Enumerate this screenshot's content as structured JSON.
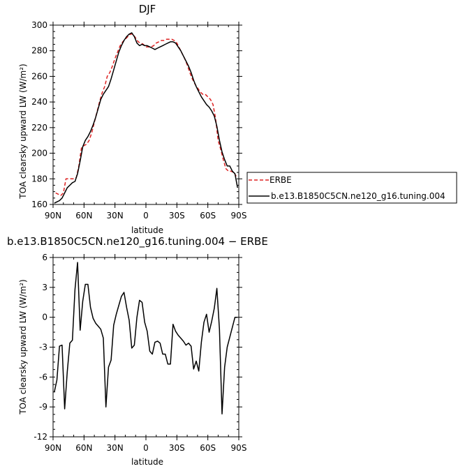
{
  "chart_data": [
    {
      "type": "line",
      "title": "DJF",
      "xlabel": "latitude",
      "ylabel": "TOA clearsky upward LW (W/m²)",
      "xlim": [
        -90,
        90
      ],
      "ylim": [
        160,
        300
      ],
      "x_ticks": [
        {
          "value": -90,
          "label": "90N"
        },
        {
          "value": -60,
          "label": "60N"
        },
        {
          "value": -30,
          "label": "30N"
        },
        {
          "value": 0,
          "label": "0"
        },
        {
          "value": 30,
          "label": "30S"
        },
        {
          "value": 60,
          "label": "60S"
        },
        {
          "value": 90,
          "label": "90S"
        }
      ],
      "y_ticks": [
        160,
        180,
        200,
        220,
        240,
        260,
        280,
        300
      ],
      "legend": "right",
      "series": [
        {
          "name": "ERBE",
          "color": "#dd2222",
          "dash": "dashed",
          "x": [
            -87.5,
            -85,
            -82.5,
            -80,
            -77.5,
            -75,
            -72.5,
            -70,
            -67.5,
            -65,
            -62.5,
            -60,
            -57.5,
            -55,
            -52.5,
            -50,
            -47.5,
            -45,
            -42.5,
            -40,
            -37.5,
            -35,
            -32.5,
            -30,
            -27.5,
            -25,
            -22.5,
            -20,
            -17.5,
            -15,
            -12.5,
            -10,
            -7.5,
            -5,
            -2.5,
            0,
            2.5,
            5,
            7.5,
            10,
            12.5,
            15,
            17.5,
            20,
            22.5,
            25,
            27.5,
            30,
            32.5,
            35,
            37.5,
            40,
            42.5,
            45,
            47.5,
            50,
            52.5,
            55,
            57.5,
            60,
            62.5,
            65,
            67.5,
            70,
            72.5,
            75,
            77.5,
            80,
            82.5,
            85,
            87.5
          ],
          "values": [
            169,
            168,
            167,
            169,
            180,
            180,
            180,
            180,
            181,
            190,
            204,
            206,
            207,
            210,
            216,
            224,
            232,
            240,
            247,
            252,
            260,
            263,
            268,
            274,
            279,
            284,
            287,
            289,
            291,
            293,
            293,
            290,
            287,
            286,
            285,
            283,
            283,
            283,
            284,
            286,
            287,
            288,
            288,
            289,
            289,
            289,
            288,
            286,
            282,
            278,
            274,
            269,
            263,
            258,
            254,
            251,
            248,
            246,
            246,
            244,
            242,
            238,
            227,
            210,
            203,
            195,
            188,
            186,
            186,
            185,
            182
          ]
        },
        {
          "name": "b.e13.B1850C5CN.ne120_g16.tuning.004",
          "color": "#000000",
          "dash": "solid",
          "x": [
            -88.75,
            -86.25,
            -83.75,
            -81.25,
            -78.75,
            -76.25,
            -73.75,
            -71.25,
            -68.75,
            -66.25,
            -63.75,
            -61.25,
            -58.75,
            -56.25,
            -53.75,
            -51.25,
            -48.75,
            -46.25,
            -43.75,
            -41.25,
            -38.75,
            -36.25,
            -33.75,
            -31.25,
            -28.75,
            -26.25,
            -23.75,
            -21.25,
            -18.75,
            -16.25,
            -13.75,
            -11.25,
            -8.75,
            -6.25,
            -3.75,
            -1.25,
            1.25,
            3.75,
            6.25,
            8.75,
            11.25,
            13.75,
            16.25,
            18.75,
            21.25,
            23.75,
            26.25,
            28.75,
            31.25,
            33.75,
            36.25,
            38.75,
            41.25,
            43.75,
            46.25,
            48.75,
            51.25,
            53.75,
            56.25,
            58.75,
            61.25,
            63.75,
            66.25,
            68.75,
            71.25,
            73.75,
            76.25,
            78.75,
            81.25,
            83.75,
            86.25,
            88.75
          ],
          "values": [
            161,
            162,
            163,
            165,
            169,
            173,
            175,
            177,
            178,
            184,
            194,
            205,
            210,
            213,
            217,
            222,
            228,
            235,
            242,
            246,
            249,
            252,
            258,
            265,
            272,
            279,
            284,
            288,
            291,
            293,
            294,
            291,
            286,
            284,
            285,
            284,
            284,
            283,
            282,
            281,
            282,
            283,
            284,
            285,
            286,
            287,
            287,
            286,
            283,
            280,
            276,
            272,
            268,
            263,
            257,
            252,
            248,
            244,
            241,
            238,
            236,
            233,
            229,
            221,
            210,
            201,
            195,
            190,
            190,
            186,
            184,
            173
          ]
        }
      ]
    },
    {
      "type": "line",
      "title": "b.e13.B1850C5CN.ne120_g16.tuning.004 − ERBE",
      "xlabel": "latitude",
      "ylabel": "TOA clearsky upward LW (W/m²)",
      "xlim": [
        -90,
        90
      ],
      "ylim": [
        -12,
        6
      ],
      "x_ticks": [
        {
          "value": -90,
          "label": "90N"
        },
        {
          "value": -60,
          "label": "60N"
        },
        {
          "value": -30,
          "label": "30N"
        },
        {
          "value": 0,
          "label": "0"
        },
        {
          "value": 30,
          "label": "30S"
        },
        {
          "value": 60,
          "label": "60S"
        },
        {
          "value": 90,
          "label": "90S"
        }
      ],
      "y_ticks": [
        -12,
        -9,
        -6,
        -3,
        0,
        3,
        6
      ],
      "series": [
        {
          "color": "#000000",
          "x": [
            -88.75,
            -86.25,
            -83.75,
            -81.25,
            -78.75,
            -76.25,
            -73.75,
            -71.25,
            -68.75,
            -66.25,
            -63.75,
            -61.25,
            -58.75,
            -56.25,
            -53.75,
            -51.25,
            -48.75,
            -46.25,
            -43.75,
            -41.25,
            -38.75,
            -36.25,
            -33.75,
            -31.25,
            -28.75,
            -26.25,
            -23.75,
            -21.25,
            -18.75,
            -16.25,
            -13.75,
            -11.25,
            -8.75,
            -6.25,
            -3.75,
            -1.25,
            1.25,
            3.75,
            6.25,
            8.75,
            11.25,
            13.75,
            16.25,
            18.75,
            21.25,
            23.75,
            26.25,
            28.75,
            31.25,
            33.75,
            36.25,
            38.75,
            41.25,
            43.75,
            46.25,
            48.75,
            51.25,
            53.75,
            56.25,
            58.75,
            61.25,
            63.75,
            66.25,
            68.75,
            71.25,
            73.75,
            76.25,
            78.75,
            81.25,
            83.75,
            86.25,
            88.75
          ],
          "values": [
            -7.5,
            -6.3,
            -2.9,
            -2.8,
            -9.2,
            -5.5,
            -2.6,
            -2.3,
            2.8,
            5.5,
            -1.3,
            1.6,
            3.3,
            3.3,
            1.0,
            -0.1,
            -0.6,
            -0.9,
            -1.2,
            -2.1,
            -9.0,
            -5.0,
            -4.3,
            -0.8,
            0.3,
            1.2,
            2.1,
            2.5,
            1.0,
            -0.3,
            -3.1,
            -2.8,
            0.0,
            1.7,
            1.5,
            -0.5,
            -1.4,
            -3.4,
            -3.7,
            -2.5,
            -2.4,
            -2.6,
            -3.7,
            -3.7,
            -4.7,
            -4.7,
            -0.7,
            -1.4,
            -1.8,
            -2.1,
            -2.4,
            -2.8,
            -2.6,
            -2.9,
            -5.2,
            -4.4,
            -5.4,
            -2.5,
            -0.5,
            0.3,
            -1.5,
            -0.4,
            0.9,
            2.9,
            -1.2,
            -9.7,
            -5,
            -3,
            -2,
            -1,
            0,
            0
          ]
        }
      ]
    }
  ]
}
